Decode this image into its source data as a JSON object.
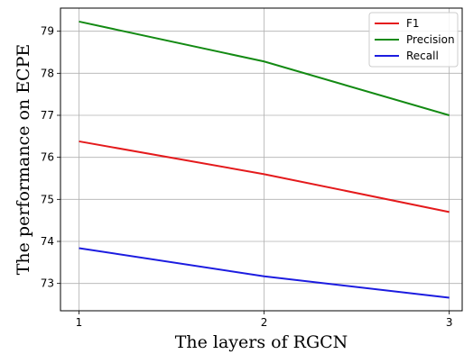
{
  "chart_data": {
    "type": "line",
    "title": "",
    "xlabel": "The layers of RGCN",
    "ylabel": "The performance on ECPE",
    "x": [
      1,
      2,
      3
    ],
    "xticks": [
      "1",
      "2",
      "3"
    ],
    "xlim": [
      0.9,
      3.07
    ],
    "yticks": [
      73,
      74,
      75,
      76,
      77,
      78,
      79
    ],
    "ylim": [
      72.35,
      79.55
    ],
    "grid": true,
    "legend_position": "top-right",
    "series": [
      {
        "name": "F1",
        "color": "#e41a1c",
        "values": [
          76.38,
          75.6,
          74.7
        ]
      },
      {
        "name": "Precision",
        "color": "#138a13",
        "values": [
          79.23,
          78.28,
          77.0
        ]
      },
      {
        "name": "Recall",
        "color": "#1c1ce0",
        "values": [
          73.84,
          73.17,
          72.66
        ]
      }
    ]
  }
}
